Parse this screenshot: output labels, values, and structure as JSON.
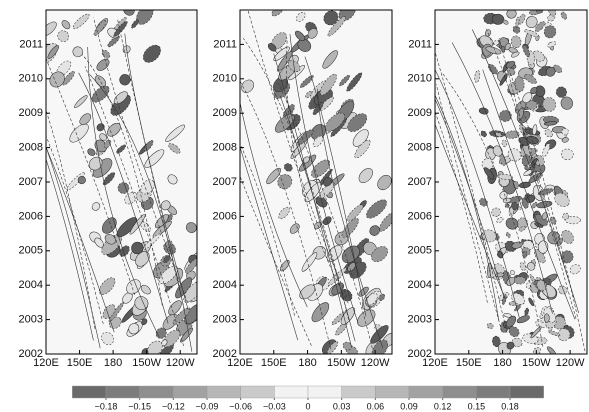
{
  "chart_data": [
    {
      "type": "contour",
      "xlim": [
        120,
        255
      ],
      "ylim": [
        2002,
        2012
      ],
      "xticks": [
        {
          "value": 120,
          "label": "120E"
        },
        {
          "value": 150,
          "label": "150E"
        },
        180,
        {
          "value": 210,
          "label": "150W"
        },
        {
          "value": 240,
          "label": "120W"
        }
      ],
      "yticks": [
        2002,
        2003,
        2004,
        2005,
        2006,
        2007,
        2008,
        2009,
        2010,
        2011
      ]
    },
    {
      "type": "contour",
      "xlim": [
        120,
        255
      ],
      "ylim": [
        2002,
        2012
      ],
      "xticks": [
        {
          "value": 120,
          "label": "120E"
        },
        {
          "value": 150,
          "label": "150E"
        },
        180,
        {
          "value": 210,
          "label": "150W"
        },
        {
          "value": 240,
          "label": "120W"
        }
      ],
      "yticks": [
        2002,
        2003,
        2004,
        2005,
        2006,
        2007,
        2008,
        2009,
        2010,
        2011
      ]
    },
    {
      "type": "contour",
      "xlim": [
        120,
        255
      ],
      "ylim": [
        2002,
        2012
      ],
      "xticks": [
        {
          "value": 120,
          "label": "120E"
        },
        {
          "value": 150,
          "label": "150E"
        },
        180,
        {
          "value": 210,
          "label": "150W"
        },
        {
          "value": 240,
          "label": "120W"
        }
      ],
      "yticks": [
        2002,
        2003,
        2004,
        2005,
        2006,
        2007,
        2008,
        2009,
        2010,
        2011
      ]
    }
  ],
  "colorbar": {
    "ticks": [
      {
        "value": -0.18,
        "label": "−0.18"
      },
      {
        "value": -0.15,
        "label": "−0.15"
      },
      {
        "value": -0.12,
        "label": "−0.12"
      },
      {
        "value": -0.09,
        "label": "−0.09"
      },
      {
        "value": -0.06,
        "label": "−0.06"
      },
      {
        "value": -0.03,
        "label": "−0.03"
      },
      0,
      0.03,
      0.06,
      0.09,
      0.12,
      0.15,
      0.18
    ],
    "colors": [
      "#6a6a6a",
      "#7c7c7c",
      "#8e8e8e",
      "#a2a2a2",
      "#b6b6b6",
      "#cacaca",
      "#f2f2f2",
      "#f2f2f2",
      "#cacaca",
      "#b6b6b6",
      "#a2a2a2",
      "#8e8e8e",
      "#7c7c7c",
      "#6a6a6a"
    ]
  }
}
